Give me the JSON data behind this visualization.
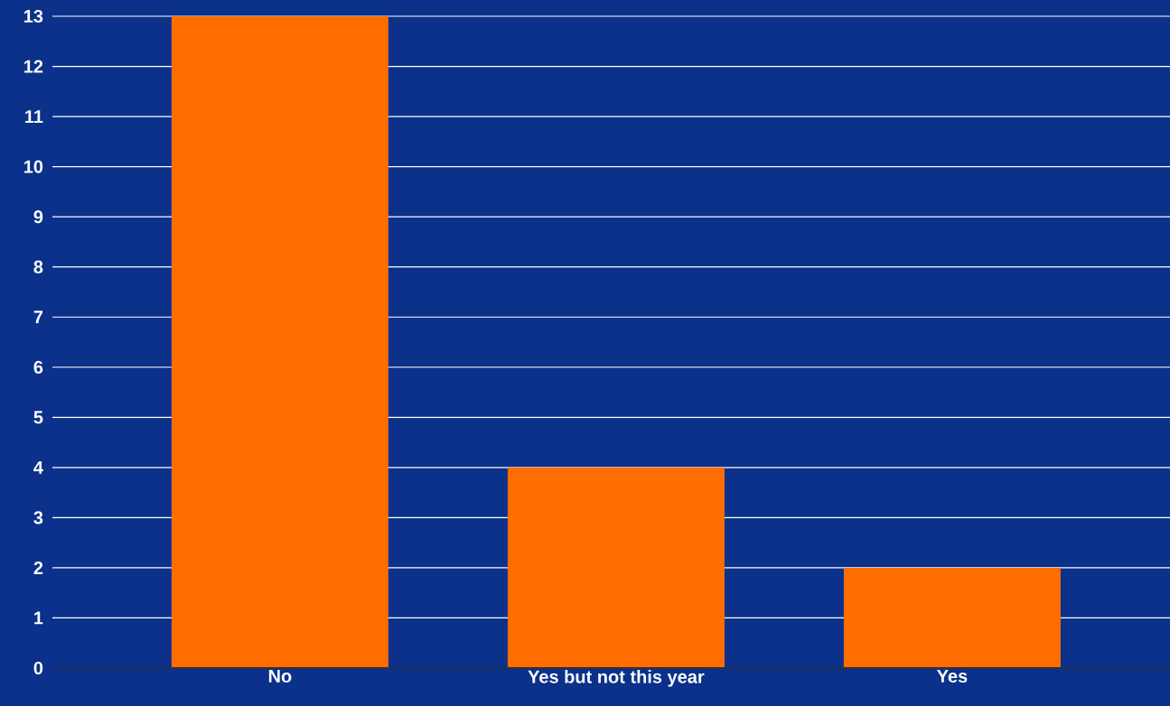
{
  "chart_data": {
    "type": "bar",
    "categories": [
      "No",
      "Yes but not this year",
      "Yes"
    ],
    "values": [
      13,
      4,
      2
    ],
    "color": "#ff6d00",
    "ylim": [
      0,
      13
    ],
    "yticks": [
      0,
      1,
      2,
      3,
      4,
      5,
      6,
      7,
      8,
      9,
      10,
      11,
      12,
      13
    ],
    "grid": "y"
  }
}
